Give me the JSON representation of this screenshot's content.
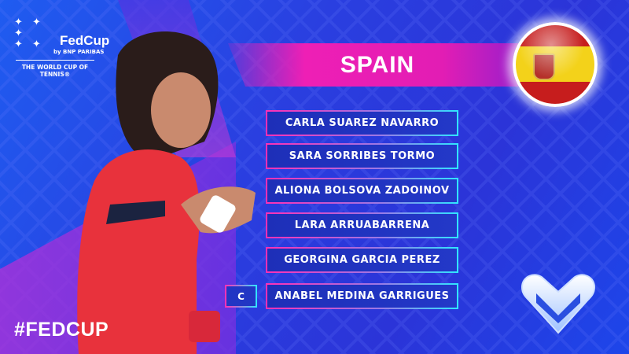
{
  "logo": {
    "brand": "FedCup",
    "sponsor": "by BNP PARIBAS",
    "tagline": "THE WORLD CUP OF TENNIS®"
  },
  "banner": {
    "country": "Spain",
    "country_display": "SPAIN",
    "flag_icon": "spain-flag-ball"
  },
  "players": [
    {
      "name": "CARLA SUAREZ NAVARRO",
      "captain": false
    },
    {
      "name": "SARA SORRIBES TORMO",
      "captain": false
    },
    {
      "name": "ALIONA BOLSOVA ZADOINOV",
      "captain": false
    },
    {
      "name": "LARA ARRUABARRENA",
      "captain": false
    },
    {
      "name": "GEORGINA GARCIA PEREZ",
      "captain": false
    },
    {
      "name": "ANABEL MEDINA GARRIGUES",
      "captain": true
    }
  ],
  "captain_badge": "C",
  "hashtag": "#FEDCUP",
  "colors": {
    "background": "#2a3fe0",
    "accent_pink": "#ee1fb5",
    "accent_cyan": "#2fe6ff",
    "box": "#2236c4"
  }
}
